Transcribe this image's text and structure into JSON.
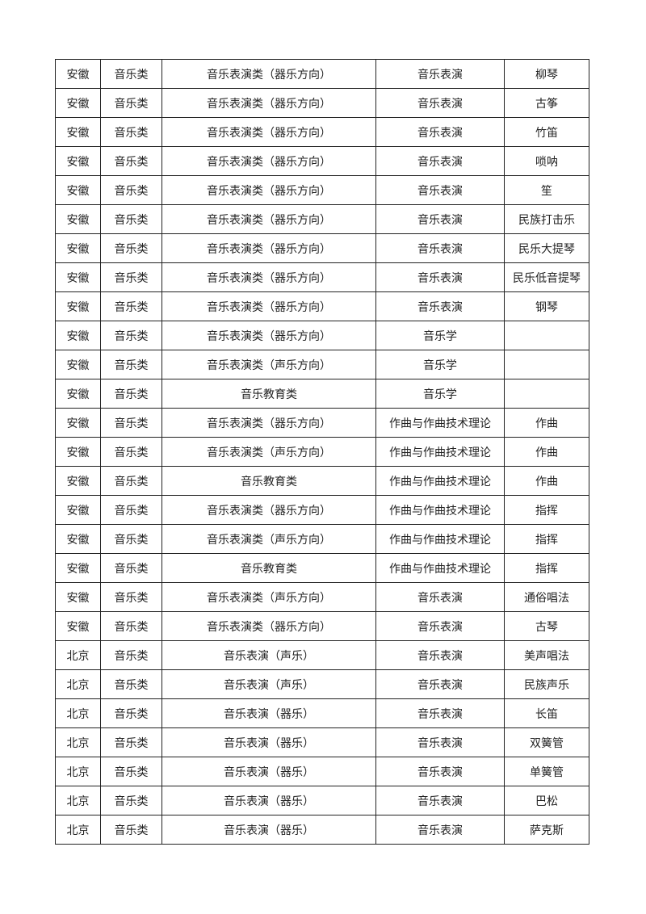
{
  "table": {
    "rows": [
      [
        "安徽",
        "音乐类",
        "音乐表演类（器乐方向）",
        "音乐表演",
        "柳琴"
      ],
      [
        "安徽",
        "音乐类",
        "音乐表演类（器乐方向）",
        "音乐表演",
        "古筝"
      ],
      [
        "安徽",
        "音乐类",
        "音乐表演类（器乐方向）",
        "音乐表演",
        "竹笛"
      ],
      [
        "安徽",
        "音乐类",
        "音乐表演类（器乐方向）",
        "音乐表演",
        "唢呐"
      ],
      [
        "安徽",
        "音乐类",
        "音乐表演类（器乐方向）",
        "音乐表演",
        "笙"
      ],
      [
        "安徽",
        "音乐类",
        "音乐表演类（器乐方向）",
        "音乐表演",
        "民族打击乐"
      ],
      [
        "安徽",
        "音乐类",
        "音乐表演类（器乐方向）",
        "音乐表演",
        "民乐大提琴"
      ],
      [
        "安徽",
        "音乐类",
        "音乐表演类（器乐方向）",
        "音乐表演",
        "民乐低音提琴"
      ],
      [
        "安徽",
        "音乐类",
        "音乐表演类（器乐方向）",
        "音乐表演",
        "钢琴"
      ],
      [
        "安徽",
        "音乐类",
        "音乐表演类（器乐方向）",
        "音乐学",
        ""
      ],
      [
        "安徽",
        "音乐类",
        "音乐表演类（声乐方向）",
        "音乐学",
        ""
      ],
      [
        "安徽",
        "音乐类",
        "音乐教育类",
        "音乐学",
        ""
      ],
      [
        "安徽",
        "音乐类",
        "音乐表演类（器乐方向）",
        "作曲与作曲技术理论",
        "作曲"
      ],
      [
        "安徽",
        "音乐类",
        "音乐表演类（声乐方向）",
        "作曲与作曲技术理论",
        "作曲"
      ],
      [
        "安徽",
        "音乐类",
        "音乐教育类",
        "作曲与作曲技术理论",
        "作曲"
      ],
      [
        "安徽",
        "音乐类",
        "音乐表演类（器乐方向）",
        "作曲与作曲技术理论",
        "指挥"
      ],
      [
        "安徽",
        "音乐类",
        "音乐表演类（声乐方向）",
        "作曲与作曲技术理论",
        "指挥"
      ],
      [
        "安徽",
        "音乐类",
        "音乐教育类",
        "作曲与作曲技术理论",
        "指挥"
      ],
      [
        "安徽",
        "音乐类",
        "音乐表演类（声乐方向）",
        "音乐表演",
        "通俗唱法"
      ],
      [
        "安徽",
        "音乐类",
        "音乐表演类（器乐方向）",
        "音乐表演",
        "古琴"
      ],
      [
        "北京",
        "音乐类",
        "音乐表演（声乐）",
        "音乐表演",
        "美声唱法"
      ],
      [
        "北京",
        "音乐类",
        "音乐表演（声乐）",
        "音乐表演",
        "民族声乐"
      ],
      [
        "北京",
        "音乐类",
        "音乐表演（器乐）",
        "音乐表演",
        "长笛"
      ],
      [
        "北京",
        "音乐类",
        "音乐表演（器乐）",
        "音乐表演",
        "双簧管"
      ],
      [
        "北京",
        "音乐类",
        "音乐表演（器乐）",
        "音乐表演",
        "单簧管"
      ],
      [
        "北京",
        "音乐类",
        "音乐表演（器乐）",
        "音乐表演",
        "巴松"
      ],
      [
        "北京",
        "音乐类",
        "音乐表演（器乐）",
        "音乐表演",
        "萨克斯"
      ]
    ]
  }
}
